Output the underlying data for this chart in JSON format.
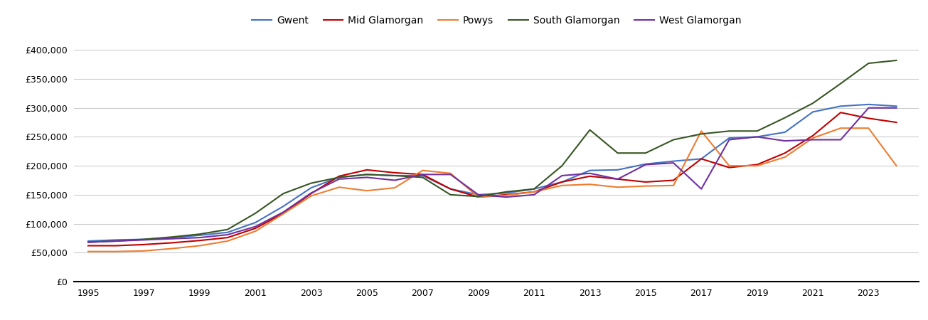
{
  "years": [
    1995,
    1996,
    1997,
    1998,
    1999,
    2000,
    2001,
    2002,
    2003,
    2004,
    2005,
    2006,
    2007,
    2008,
    2009,
    2010,
    2011,
    2012,
    2013,
    2014,
    2015,
    2016,
    2017,
    2018,
    2019,
    2020,
    2021,
    2022,
    2023,
    2024
  ],
  "series": {
    "Gwent": [
      70000,
      72000,
      73000,
      76000,
      80000,
      85000,
      102000,
      130000,
      162000,
      180000,
      185000,
      183000,
      183000,
      160000,
      150000,
      153000,
      160000,
      172000,
      192000,
      193000,
      203000,
      208000,
      212000,
      248000,
      250000,
      258000,
      293000,
      303000,
      306000,
      303000
    ],
    "Mid Glamorgan": [
      62000,
      62000,
      64000,
      67000,
      71000,
      76000,
      92000,
      118000,
      152000,
      182000,
      193000,
      188000,
      185000,
      160000,
      146000,
      150000,
      155000,
      172000,
      182000,
      177000,
      172000,
      175000,
      212000,
      197000,
      202000,
      222000,
      252000,
      292000,
      282000,
      275000
    ],
    "Powys": [
      52000,
      52000,
      53000,
      57000,
      62000,
      70000,
      87000,
      117000,
      148000,
      163000,
      157000,
      162000,
      192000,
      187000,
      146000,
      149000,
      155000,
      166000,
      168000,
      163000,
      165000,
      166000,
      260000,
      200000,
      200000,
      215000,
      248000,
      265000,
      265000,
      200000
    ],
    "South Glamorgan": [
      68000,
      70000,
      73000,
      77000,
      82000,
      90000,
      118000,
      152000,
      170000,
      180000,
      185000,
      183000,
      180000,
      150000,
      147000,
      155000,
      160000,
      200000,
      262000,
      222000,
      222000,
      245000,
      255000,
      260000,
      260000,
      283000,
      308000,
      342000,
      377000,
      382000
    ],
    "West Glamorgan": [
      68000,
      70000,
      72000,
      74000,
      76000,
      81000,
      95000,
      120000,
      153000,
      177000,
      180000,
      175000,
      185000,
      185000,
      150000,
      146000,
      150000,
      183000,
      187000,
      177000,
      202000,
      205000,
      160000,
      245000,
      250000,
      243000,
      245000,
      245000,
      300000,
      300000
    ]
  },
  "colors": {
    "Gwent": "#4472C4",
    "Mid Glamorgan": "#C00000",
    "Powys": "#ED7D31",
    "South Glamorgan": "#375623",
    "West Glamorgan": "#7030A0"
  },
  "ylim": [
    0,
    420000
  ],
  "yticks": [
    0,
    50000,
    100000,
    150000,
    200000,
    250000,
    300000,
    350000,
    400000
  ],
  "xticks": [
    1995,
    1997,
    1999,
    2001,
    2003,
    2005,
    2007,
    2009,
    2011,
    2013,
    2015,
    2017,
    2019,
    2021,
    2023
  ],
  "background_color": "#ffffff",
  "grid_color": "#cccccc",
  "line_width": 1.5
}
